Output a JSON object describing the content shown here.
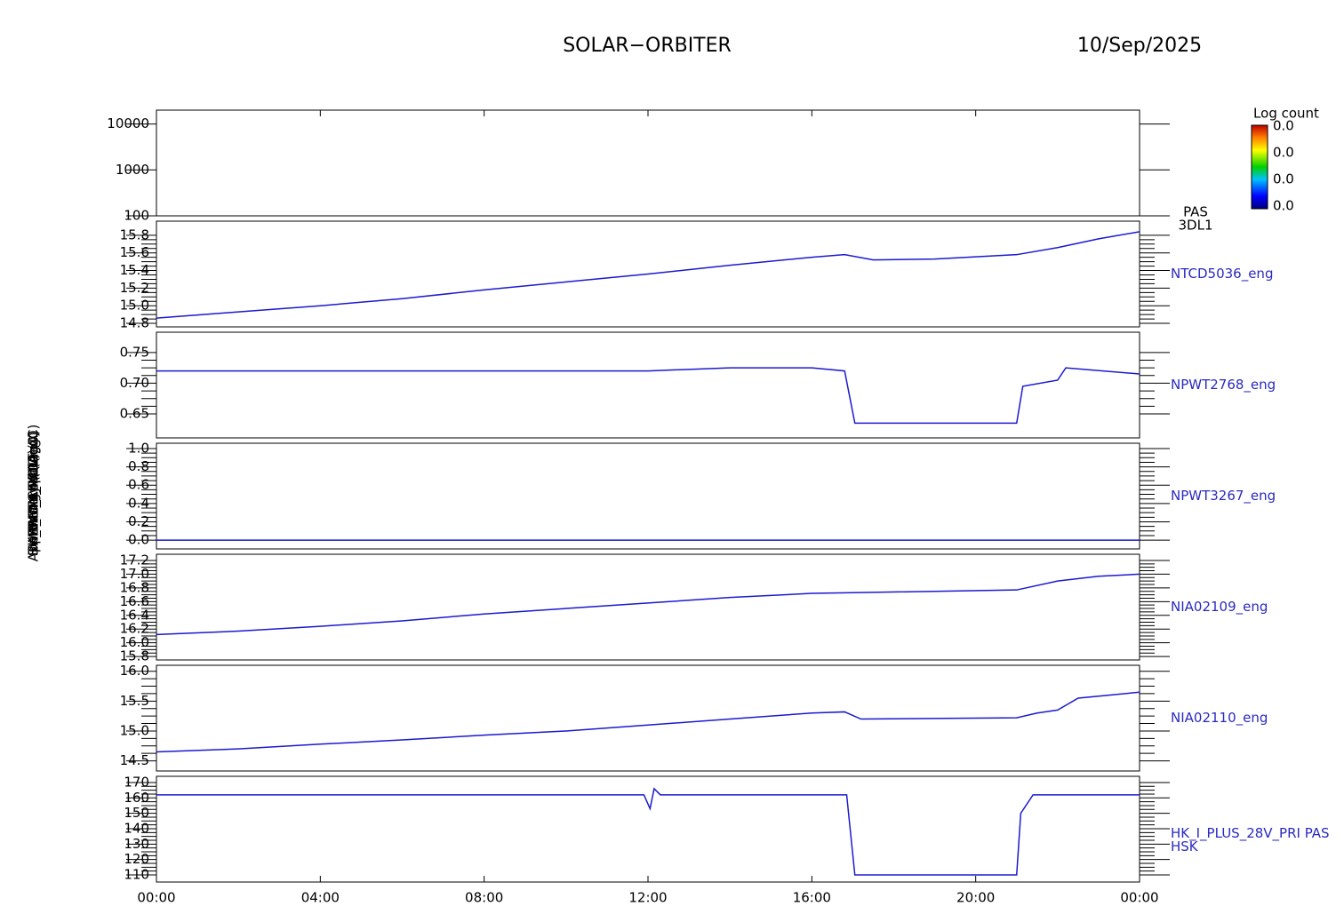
{
  "title": "SOLAR−ORBITER",
  "date": "10/Sep/2025",
  "colorbar": {
    "title": "Log count",
    "labels": [
      "0.0",
      "0.0",
      "0.0",
      "0.0"
    ]
  },
  "chart_data": [
    {
      "type": "line",
      "log": true,
      "ylabel": "Energy (eV)",
      "right_label": [
        "PAS",
        "3DL1"
      ],
      "xlim": [
        0,
        24
      ],
      "ylim": [
        100,
        20000
      ],
      "yticks": [
        100,
        1000,
        10000
      ],
      "series": []
    },
    {
      "type": "line",
      "ylabel": "Approx Temp (DegC)",
      "right_label": [
        "NTCD5036_eng"
      ],
      "xlim": [
        0,
        24
      ],
      "ylim": [
        14.76,
        15.96
      ],
      "yticks": [
        {
          "value": 14.8,
          "label": "14.8"
        },
        {
          "value": 15,
          "label": "15.0"
        },
        {
          "value": 15.2,
          "label": "15.2"
        },
        {
          "value": 15.4,
          "label": "15.4"
        },
        {
          "value": 15.6,
          "label": "15.6"
        },
        {
          "value": 15.8,
          "label": "15.8"
        }
      ],
      "series": [
        {
          "color": "#1a1ad0",
          "x": [
            0,
            2,
            4,
            6,
            8,
            10,
            12,
            14,
            16,
            16.8,
            17.5,
            19,
            21,
            22,
            23,
            24
          ],
          "values": [
            14.86,
            14.93,
            15.0,
            15.08,
            15.18,
            15.27,
            15.36,
            15.46,
            15.55,
            15.58,
            15.52,
            15.53,
            15.58,
            15.66,
            15.76,
            15.84
          ]
        }
      ]
    },
    {
      "type": "line",
      "ylabel": "SWA_EAS_VOLT (V)",
      "right_label": [
        "NPWT2768_eng"
      ],
      "xlim": [
        0,
        24
      ],
      "ylim": [
        0.611,
        0.783
      ],
      "yticks": [
        0.65,
        {
          "value": 0.7,
          "label": "0.70"
        },
        0.75
      ],
      "series": [
        {
          "color": "#1a1ad0",
          "x": [
            0,
            2,
            4,
            6,
            8,
            10,
            12,
            14,
            16,
            16.8,
            17.05,
            19,
            21,
            21.15,
            22,
            22.2,
            24
          ],
          "values": [
            0.72,
            0.72,
            0.72,
            0.72,
            0.72,
            0.72,
            0.72,
            0.725,
            0.725,
            0.72,
            0.635,
            0.635,
            0.635,
            0.695,
            0.705,
            0.725,
            0.715
          ]
        }
      ]
    },
    {
      "type": "line",
      "ylabel": "PWT_ALM (A)",
      "right_label": [
        "NPWT3267_eng"
      ],
      "xlim": [
        0,
        24
      ],
      "ylim": [
        -0.096,
        1.058
      ],
      "yticks": [
        {
          "value": 0,
          "label": "0.0"
        },
        0.2,
        0.4,
        0.6,
        0.8,
        {
          "value": 1,
          "label": "1.0"
        }
      ],
      "series": [
        {
          "color": "#1a1ad0",
          "x": [
            0,
            24
          ],
          "values": [
            0,
            0
          ]
        }
      ]
    },
    {
      "type": "line",
      "ylabel": "THERM_C4 (DegC)",
      "right_label": [
        "NIA02109_eng"
      ],
      "xlim": [
        0,
        24
      ],
      "ylim": [
        15.75,
        17.29
      ],
      "yticks": [
        15.8,
        {
          "value": 16,
          "label": "16.0"
        },
        16.2,
        16.4,
        16.6,
        16.8,
        {
          "value": 17,
          "label": "17.0"
        },
        17.2
      ],
      "series": [
        {
          "color": "#1a1ad0",
          "x": [
            0,
            2,
            4,
            6,
            8,
            10,
            12,
            14,
            16,
            17,
            21,
            22,
            23,
            24
          ],
          "values": [
            16.12,
            16.17,
            16.24,
            16.32,
            16.42,
            16.5,
            16.58,
            16.66,
            16.72,
            16.73,
            16.77,
            16.9,
            16.97,
            17.0
          ]
        }
      ]
    },
    {
      "type": "line",
      "ylabel": "THERM_C5 (DegC)",
      "right_label": [
        "NIA02110_eng"
      ],
      "xlim": [
        0,
        24
      ],
      "ylim": [
        14.33,
        16.1
      ],
      "yticks": [
        14.5,
        {
          "value": 15,
          "label": "15.0"
        },
        15.5,
        {
          "value": 16,
          "label": "16.0"
        }
      ],
      "series": [
        {
          "color": "#1a1ad0",
          "x": [
            0,
            2,
            4,
            6,
            8,
            10,
            12,
            14,
            16,
            16.8,
            17.2,
            21,
            21.5,
            22,
            22.5,
            24
          ],
          "values": [
            14.65,
            14.7,
            14.78,
            14.85,
            14.93,
            15.0,
            15.1,
            15.2,
            15.3,
            15.32,
            15.2,
            15.22,
            15.3,
            15.35,
            15.55,
            15.65
          ]
        }
      ]
    },
    {
      "type": "line",
      "ylabel": "HK_IMON_PRI (mA)",
      "right_label": [
        "HK_I_PLUS_28V_PRI PAS",
        "HSK"
      ],
      "xlim": [
        0,
        24
      ],
      "ylim": [
        105.4,
        174
      ],
      "yticks": [
        110,
        120,
        130,
        140,
        150,
        160,
        170
      ],
      "xticks": [
        {
          "value": 0,
          "label": "00:00"
        },
        {
          "value": 4,
          "label": "04:00"
        },
        {
          "value": 8,
          "label": "08:00"
        },
        {
          "value": 12,
          "label": "12:00"
        },
        {
          "value": 16,
          "label": "16:00"
        },
        {
          "value": 20,
          "label": "20:00"
        },
        {
          "value": 24,
          "label": "00:00"
        }
      ],
      "series": [
        {
          "color": "#1a1ad0",
          "x": [
            0,
            11.9,
            12.05,
            12.15,
            12.3,
            16.85,
            17.05,
            21.0,
            21.1,
            21.4,
            24
          ],
          "values": [
            162,
            162,
            153,
            166,
            162,
            162,
            110,
            110,
            150,
            162,
            162
          ]
        }
      ]
    }
  ]
}
